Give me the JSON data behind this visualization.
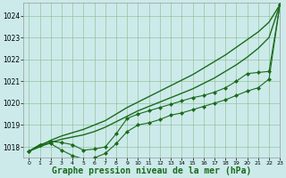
{
  "background_color": "#cceaea",
  "grid_color": "#88bb88",
  "line_color": "#1a6b1a",
  "xlabel": "Graphe pression niveau de la mer (hPa)",
  "xlabel_fontsize": 7,
  "xlim": [
    -0.5,
    23
  ],
  "ylim": [
    1017.5,
    1024.6
  ],
  "yticks": [
    1018,
    1019,
    1020,
    1021,
    1022,
    1023,
    1024
  ],
  "xticks": [
    0,
    1,
    2,
    3,
    4,
    5,
    6,
    7,
    8,
    9,
    10,
    11,
    12,
    13,
    14,
    15,
    16,
    17,
    18,
    19,
    20,
    21,
    22,
    23
  ],
  "series": [
    {
      "x": [
        0,
        1,
        2,
        3,
        4,
        5,
        6,
        7,
        8,
        9,
        10,
        11,
        12,
        13,
        14,
        15,
        16,
        17,
        18,
        19,
        20,
        21,
        22,
        23
      ],
      "y": [
        1017.8,
        1018.05,
        1018.3,
        1018.5,
        1018.65,
        1018.8,
        1019.0,
        1019.2,
        1019.5,
        1019.8,
        1020.05,
        1020.3,
        1020.55,
        1020.8,
        1021.05,
        1021.3,
        1021.6,
        1021.9,
        1022.2,
        1022.55,
        1022.9,
        1023.25,
        1023.7,
        1024.5
      ],
      "marker": null,
      "linestyle": "-",
      "linewidth": 1.0
    },
    {
      "x": [
        0,
        1,
        2,
        3,
        4,
        5,
        6,
        7,
        8,
        9,
        10,
        11,
        12,
        13,
        14,
        15,
        16,
        17,
        18,
        19,
        20,
        21,
        22,
        23
      ],
      "y": [
        1017.8,
        1018.0,
        1018.2,
        1018.35,
        1018.45,
        1018.55,
        1018.7,
        1018.9,
        1019.15,
        1019.4,
        1019.65,
        1019.85,
        1020.05,
        1020.25,
        1020.45,
        1020.65,
        1020.9,
        1021.15,
        1021.45,
        1021.75,
        1022.1,
        1022.5,
        1023.0,
        1024.5
      ],
      "marker": null,
      "linestyle": "-",
      "linewidth": 1.0
    },
    {
      "x": [
        0,
        1,
        2,
        3,
        4,
        5,
        6,
        7,
        8,
        9,
        10,
        11,
        12,
        13,
        14,
        15,
        16,
        17,
        18,
        19,
        20,
        21,
        22,
        23
      ],
      "y": [
        1017.8,
        1018.1,
        1018.25,
        1018.2,
        1018.1,
        1017.85,
        1017.9,
        1018.0,
        1018.6,
        1019.3,
        1019.5,
        1019.65,
        1019.8,
        1019.95,
        1020.1,
        1020.25,
        1020.35,
        1020.5,
        1020.7,
        1021.0,
        1021.35,
        1021.4,
        1021.45,
        1024.5
      ],
      "marker": "D",
      "markersize": 2.0,
      "linestyle": "-",
      "linewidth": 0.8
    },
    {
      "x": [
        0,
        1,
        2,
        3,
        4,
        5,
        6,
        7,
        8,
        9,
        10,
        11,
        12,
        13,
        14,
        15,
        16,
        17,
        18,
        19,
        20,
        21,
        22,
        23
      ],
      "y": [
        1017.8,
        1018.1,
        1018.15,
        1017.85,
        1017.6,
        1017.45,
        1017.5,
        1017.7,
        1018.15,
        1018.7,
        1019.0,
        1019.1,
        1019.25,
        1019.45,
        1019.55,
        1019.7,
        1019.85,
        1020.0,
        1020.15,
        1020.35,
        1020.55,
        1020.7,
        1021.1,
        1024.5
      ],
      "marker": "D",
      "markersize": 2.0,
      "linestyle": "-",
      "linewidth": 0.8
    }
  ]
}
